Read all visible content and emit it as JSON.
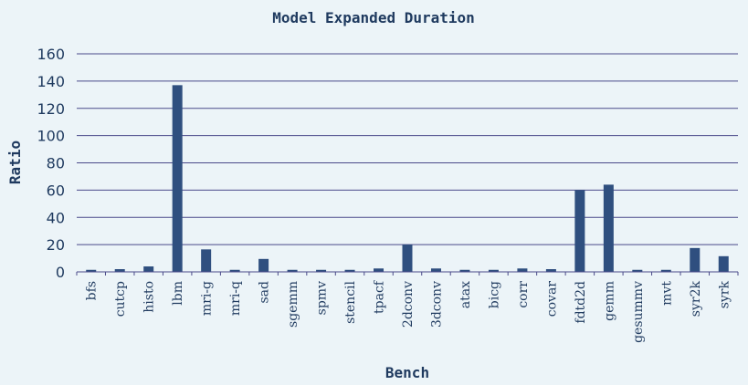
{
  "chart_data": {
    "type": "bar",
    "title": "Model Expanded Duration",
    "xlabel": "Bench",
    "ylabel": "Ratio",
    "ylim": [
      0,
      160
    ],
    "yticks": [
      0,
      20,
      40,
      60,
      80,
      100,
      120,
      140,
      160
    ],
    "grid": true,
    "categories": [
      "bfs",
      "cutcp",
      "histo",
      "lbm",
      "mri-g",
      "mri-q",
      "sad",
      "sgemm",
      "spmv",
      "stencil",
      "tpacf",
      "2dconv",
      "3dconv",
      "atax",
      "bicg",
      "corr",
      "covar",
      "fdtd2d",
      "gemm",
      "gesummv",
      "mvt",
      "syr2k",
      "syrk"
    ],
    "values": [
      1.5,
      2,
      4,
      137,
      16.5,
      1.5,
      9.5,
      1.5,
      1.5,
      1.5,
      2.5,
      20,
      2.5,
      1.5,
      1.5,
      2.5,
      2,
      60,
      64,
      1.5,
      1.5,
      17.5,
      11.5
    ],
    "colors": {
      "bar": "#2f4f7f",
      "grid": "#4a4a8a",
      "text": "#1f3a5f",
      "background": "#ecf4f8"
    }
  }
}
